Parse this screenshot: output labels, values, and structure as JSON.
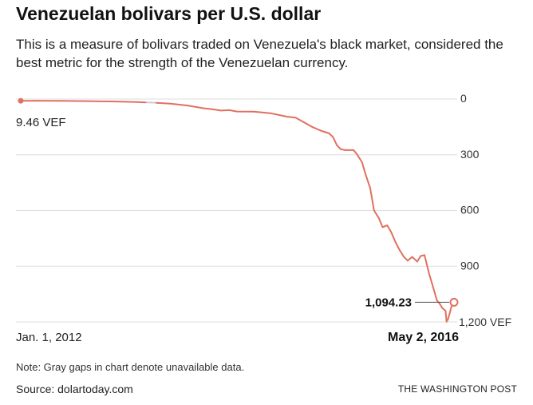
{
  "header": {
    "title": "Venezuelan bolivars per U.S. dollar",
    "subtitle": "This is a measure of bolivars traded on Venezuela's black market, considered the best metric for the strength of the Venezuelan currency."
  },
  "footer": {
    "note": "Note: Gray gaps in chart denote unavailable data.",
    "source": "Source: dolartoday.com",
    "brand": "THE WASHINGTON POST"
  },
  "colors": {
    "line": "#e07060",
    "gap": "#cccccc",
    "grid": "#dddddd"
  },
  "chart_data": {
    "type": "line",
    "title": "Venezuelan bolivars per U.S. dollar",
    "xlabel": "",
    "ylabel": "",
    "x_range": [
      "2012-01-01",
      "2016-05-02"
    ],
    "ylim": [
      0,
      1200
    ],
    "y_inverted": true,
    "grid": true,
    "y_ticks": [
      {
        "value": 0,
        "label": "0"
      },
      {
        "value": 300,
        "label": "300"
      },
      {
        "value": 600,
        "label": "600"
      },
      {
        "value": 900,
        "label": "900"
      },
      {
        "value": 1200,
        "label": "1,200 VEF"
      }
    ],
    "x_tick_labels": [
      {
        "date": "2012-01-01",
        "label": "Jan. 1, 2012"
      },
      {
        "date": "2016-05-02",
        "label": "May 2, 2016"
      }
    ],
    "annotations": [
      {
        "date": "2012-01-01",
        "value": 9.46,
        "label": "9.46 VEF"
      },
      {
        "date": "2016-05-02",
        "value": 1094.23,
        "label": "1,094.23"
      }
    ],
    "gaps": [
      [
        "2013-04-01",
        "2013-05-10"
      ],
      [
        "2016-04-05",
        "2016-04-09"
      ]
    ],
    "series": [
      {
        "points": [
          [
            "2012-01-01",
            9.46
          ],
          [
            "2012-03-01",
            9
          ],
          [
            "2012-06-01",
            10
          ],
          [
            "2012-09-01",
            11
          ],
          [
            "2012-12-01",
            13
          ],
          [
            "2013-03-01",
            16
          ],
          [
            "2013-04-01",
            18
          ],
          [
            "2013-05-10",
            20
          ],
          [
            "2013-07-01",
            25
          ],
          [
            "2013-09-01",
            35
          ],
          [
            "2013-11-01",
            50
          ],
          [
            "2013-12-01",
            55
          ],
          [
            "2014-01-01",
            62
          ],
          [
            "2014-02-01",
            60
          ],
          [
            "2014-03-01",
            67
          ],
          [
            "2014-05-01",
            68
          ],
          [
            "2014-07-01",
            76
          ],
          [
            "2014-09-01",
            95
          ],
          [
            "2014-10-01",
            100
          ],
          [
            "2014-11-01",
            125
          ],
          [
            "2014-12-01",
            150
          ],
          [
            "2015-01-01",
            170
          ],
          [
            "2015-02-01",
            185
          ],
          [
            "2015-02-15",
            205
          ],
          [
            "2015-03-01",
            248
          ],
          [
            "2015-03-15",
            270
          ],
          [
            "2015-04-01",
            275
          ],
          [
            "2015-05-01",
            275
          ],
          [
            "2015-05-15",
            300
          ],
          [
            "2015-06-01",
            340
          ],
          [
            "2015-06-15",
            410
          ],
          [
            "2015-07-01",
            480
          ],
          [
            "2015-07-15",
            600
          ],
          [
            "2015-08-01",
            640
          ],
          [
            "2015-08-15",
            690
          ],
          [
            "2015-09-01",
            680
          ],
          [
            "2015-09-15",
            715
          ],
          [
            "2015-10-01",
            770
          ],
          [
            "2015-10-15",
            810
          ],
          [
            "2015-11-01",
            850
          ],
          [
            "2015-11-15",
            870
          ],
          [
            "2015-12-01",
            850
          ],
          [
            "2015-12-20",
            875
          ],
          [
            "2016-01-01",
            845
          ],
          [
            "2016-01-15",
            840
          ],
          [
            "2016-02-01",
            940
          ],
          [
            "2016-02-15",
            1010
          ],
          [
            "2016-03-01",
            1085
          ],
          [
            "2016-03-10",
            1100
          ],
          [
            "2016-03-20",
            1125
          ],
          [
            "2016-04-01",
            1140
          ],
          [
            "2016-04-05",
            1200
          ],
          [
            "2016-04-09",
            1190
          ],
          [
            "2016-04-15",
            1160
          ],
          [
            "2016-04-22",
            1120
          ],
          [
            "2016-05-02",
            1094.23
          ]
        ]
      }
    ]
  }
}
